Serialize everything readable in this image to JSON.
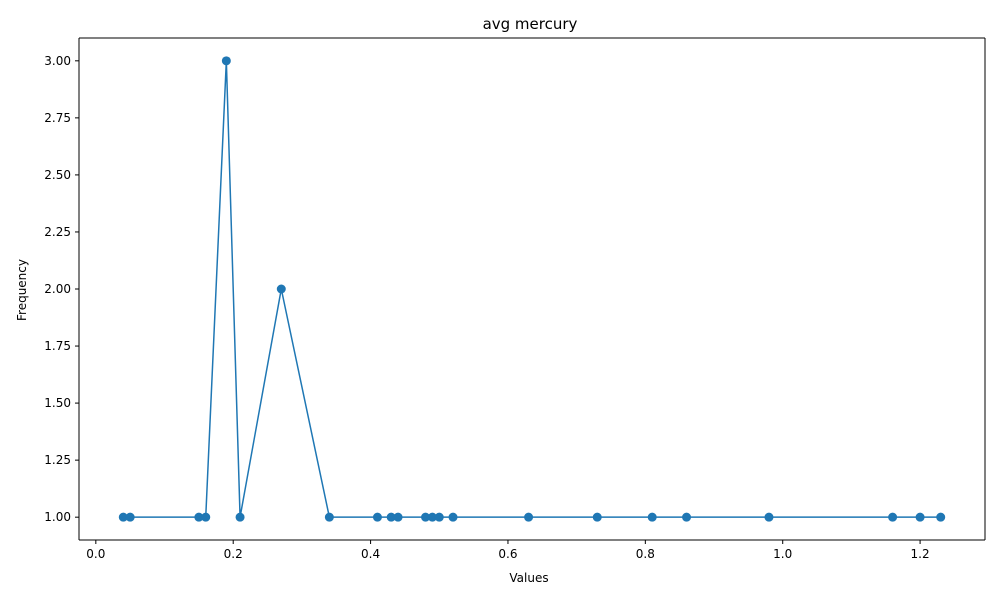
{
  "chart_data": {
    "type": "line",
    "title": "avg mercury",
    "xlabel": "Values",
    "ylabel": "Frequency",
    "xlim": [
      -0.0245,
      1.2945
    ],
    "ylim": [
      0.9,
      3.1
    ],
    "x_ticks": [
      0.0,
      0.2,
      0.4,
      0.6,
      0.8,
      1.0,
      1.2
    ],
    "x_tick_labels": [
      "0.0",
      "0.2",
      "0.4",
      "0.6",
      "0.8",
      "1.0",
      "1.2"
    ],
    "y_ticks": [
      1.0,
      1.25,
      1.5,
      1.75,
      2.0,
      2.25,
      2.5,
      2.75,
      3.0
    ],
    "y_tick_labels": [
      "1.00",
      "1.25",
      "1.50",
      "1.75",
      "2.00",
      "2.25",
      "2.50",
      "2.75",
      "3.00"
    ],
    "grid": false,
    "legend": false,
    "series": [
      {
        "color": "#1f77b4",
        "marker": "circle",
        "x": [
          0.04,
          0.05,
          0.15,
          0.16,
          0.19,
          0.21,
          0.27,
          0.34,
          0.41,
          0.43,
          0.44,
          0.48,
          0.49,
          0.5,
          0.52,
          0.63,
          0.73,
          0.81,
          0.86,
          0.98,
          1.16,
          1.2,
          1.23
        ],
        "y": [
          1,
          1,
          1,
          1,
          3,
          1,
          2,
          1,
          1,
          1,
          1,
          1,
          1,
          1,
          1,
          1,
          1,
          1,
          1,
          1,
          1,
          1,
          1
        ]
      }
    ]
  }
}
